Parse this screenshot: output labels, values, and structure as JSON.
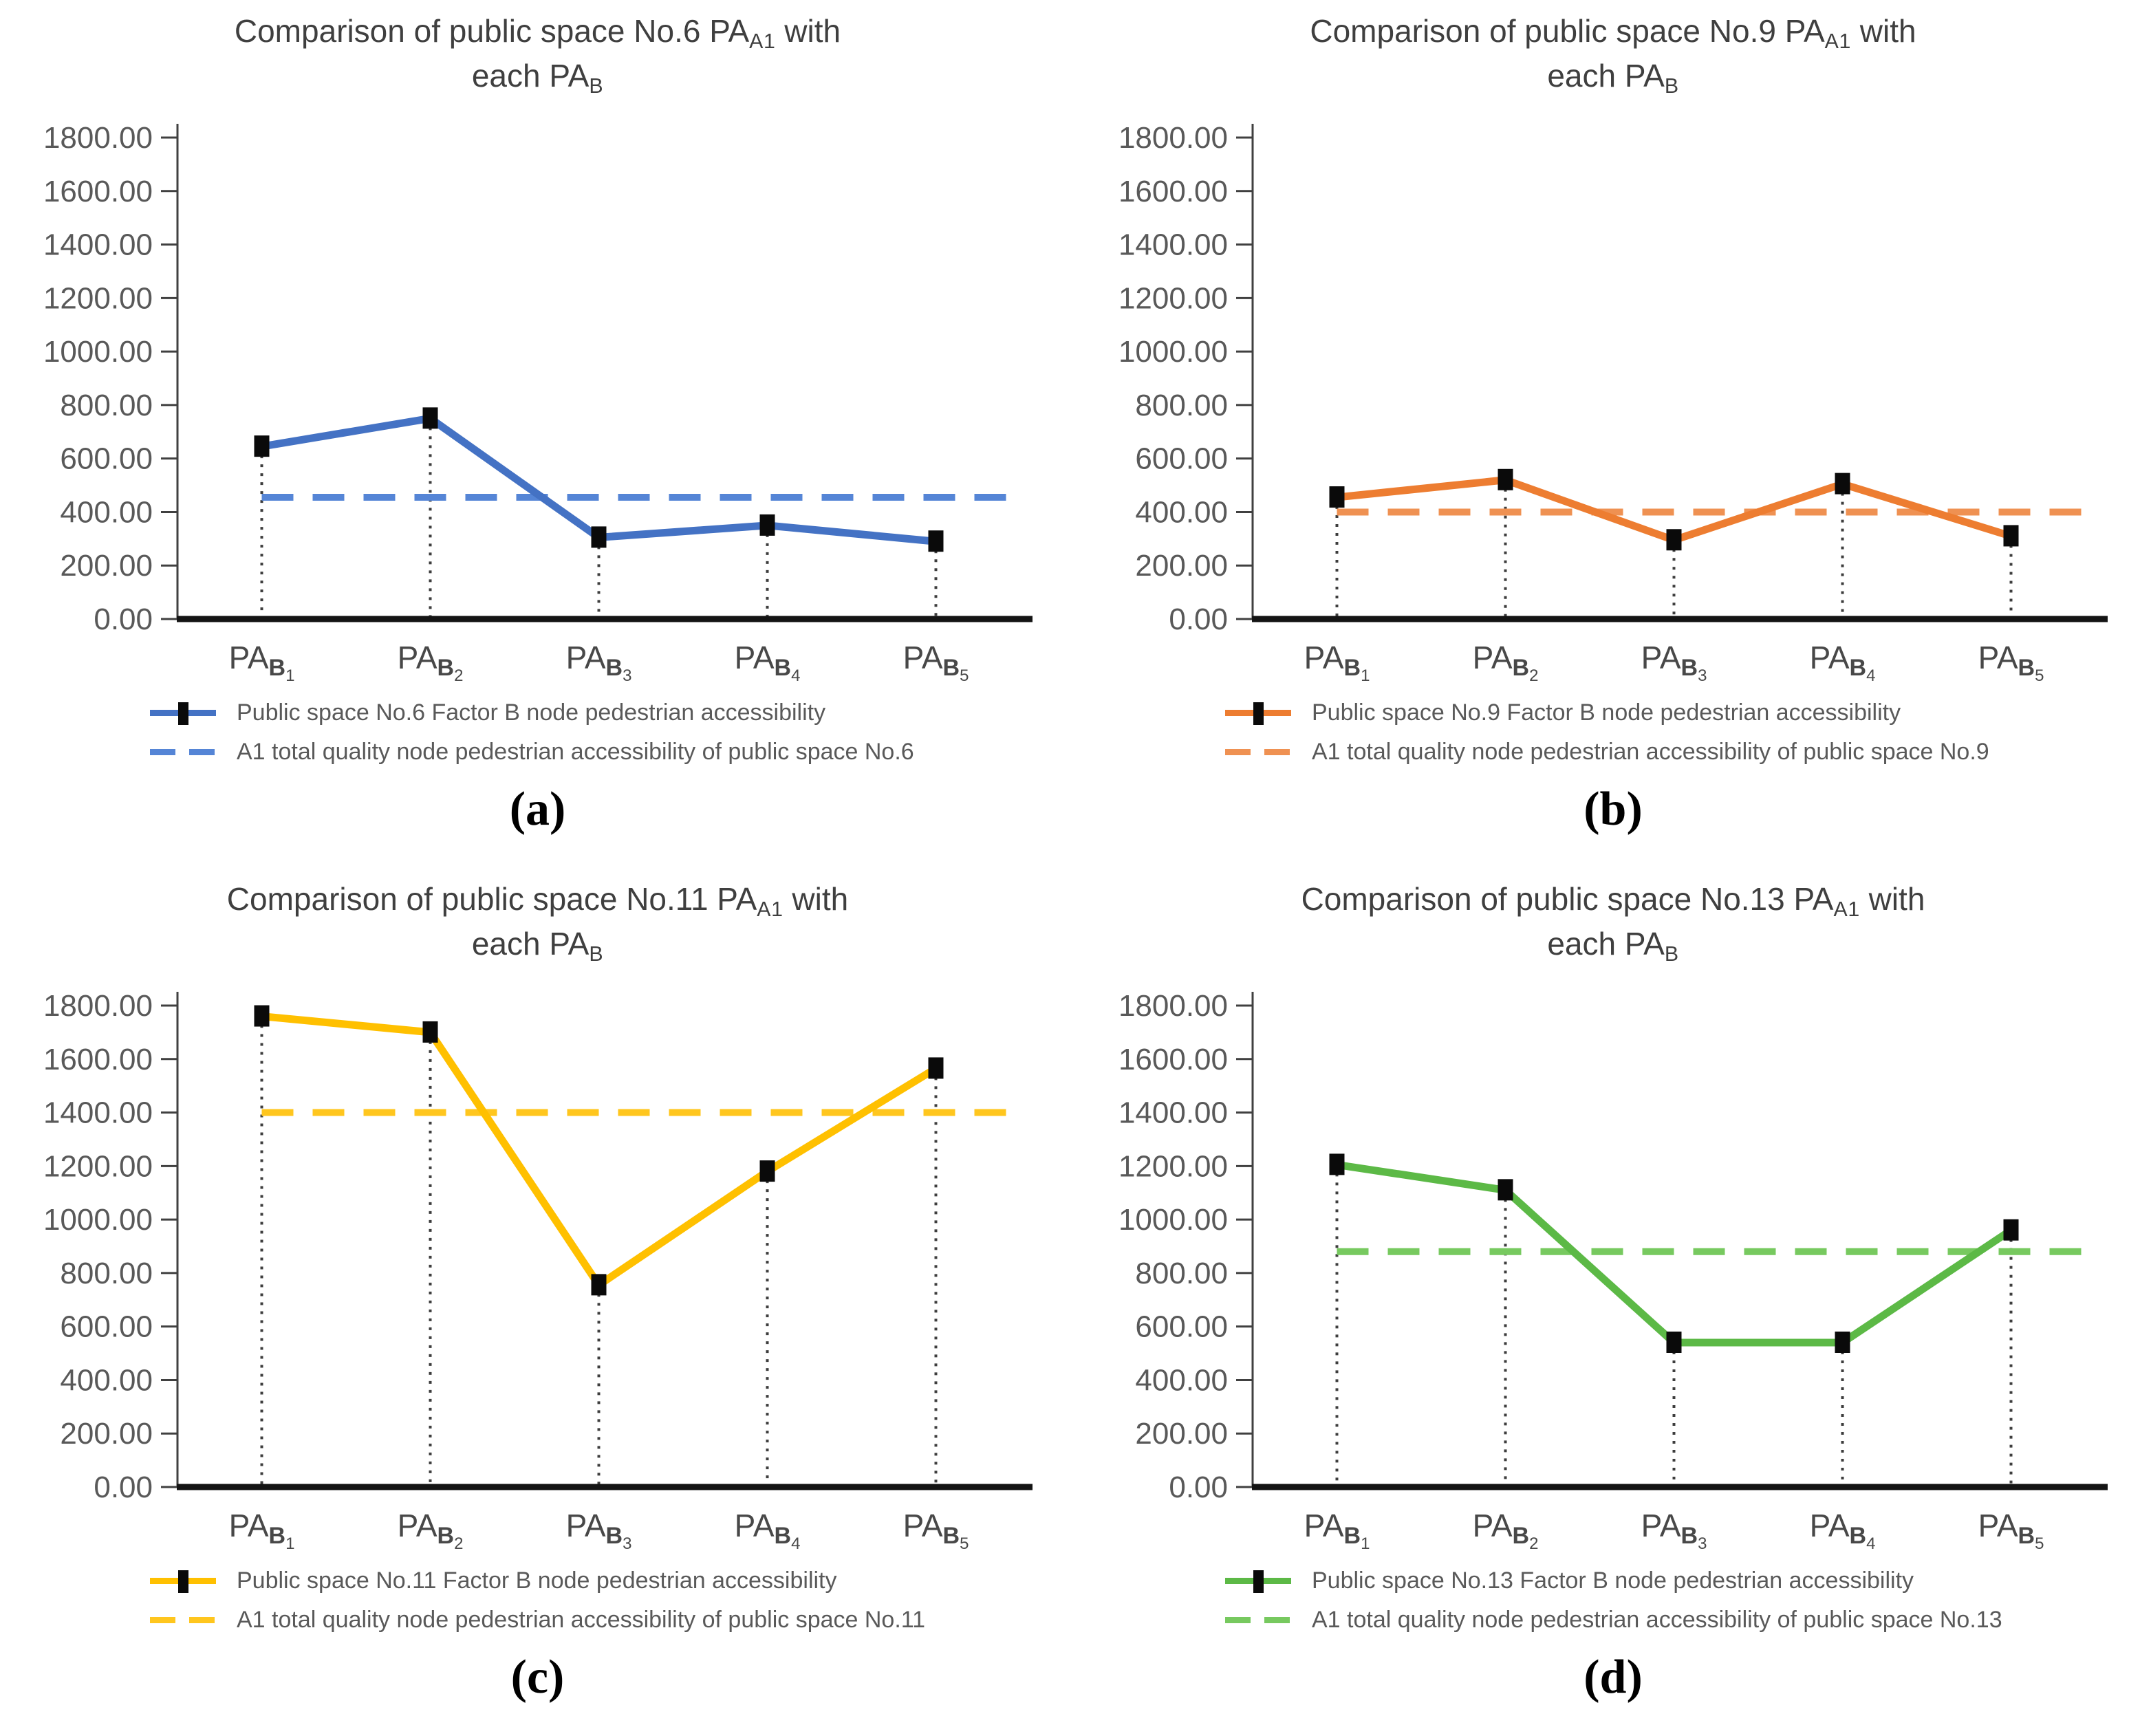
{
  "axis": {
    "y_ticks": [
      "1800.00",
      "1600.00",
      "1400.00",
      "1200.00",
      "1000.00",
      "800.00",
      "600.00",
      "400.00",
      "200.00",
      "0.00"
    ],
    "y_min": 0,
    "y_max": 1800,
    "y_step": 200,
    "x_prefix": "PA",
    "x_sub": "B",
    "x_nums": [
      "1",
      "2",
      "3",
      "4",
      "5"
    ]
  },
  "marker": {
    "shape": "black-square",
    "color": "#0a0a0a"
  },
  "chart_data": [
    {
      "id": "a",
      "type": "line",
      "caption": "(a)",
      "title": {
        "line1_main": "Comparison of public space No.6 PA",
        "line1_sub": "A1",
        "line1_tail": " with",
        "line2_main": "each PA",
        "line2_sub": "B"
      },
      "categories": [
        "PA_B1",
        "PA_B2",
        "PA_B3",
        "PA_B4",
        "PA_B5"
      ],
      "ylim": [
        0,
        1800
      ],
      "grid": false,
      "legend_position": "bottom-left",
      "series": [
        {
          "name": "Public space No.6 Factor B node pedestrian accessibility",
          "style": "solid-line-black-square-markers",
          "color": "#4472C4",
          "values": [
            645,
            750,
            305,
            350,
            290
          ]
        },
        {
          "name": "A1 total quality node pedestrian accessibility of public space No.6",
          "style": "dashed-horizontal-reference-line",
          "color": "#5585D6",
          "values": [
            455,
            455,
            455,
            455,
            455
          ]
        }
      ]
    },
    {
      "id": "b",
      "type": "line",
      "caption": "(b)",
      "title": {
        "line1_main": "Comparison of public space No.9 PA",
        "line1_sub": "A1",
        "line1_tail": " with",
        "line2_main": "each PA",
        "line2_sub": "B"
      },
      "categories": [
        "PA_B1",
        "PA_B2",
        "PA_B3",
        "PA_B4",
        "PA_B5"
      ],
      "ylim": [
        0,
        1800
      ],
      "grid": false,
      "legend_position": "bottom-left",
      "series": [
        {
          "name": "Public space No.9 Factor B node pedestrian accessibility",
          "style": "solid-line-black-square-markers",
          "color": "#ED7D31",
          "values": [
            455,
            520,
            295,
            505,
            310
          ]
        },
        {
          "name": "A1 total quality node pedestrian accessibility of public space No.9",
          "style": "dashed-horizontal-reference-line",
          "color": "#EF9152",
          "values": [
            400,
            400,
            400,
            400,
            400
          ]
        }
      ]
    },
    {
      "id": "c",
      "type": "line",
      "caption": "(c)",
      "title": {
        "line1_main": "Comparison of public space No.11 PA",
        "line1_sub": "A1",
        "line1_tail": " with",
        "line2_main": "each PA",
        "line2_sub": "B"
      },
      "categories": [
        "PA_B1",
        "PA_B2",
        "PA_B3",
        "PA_B4",
        "PA_B5"
      ],
      "ylim": [
        0,
        1800
      ],
      "grid": false,
      "legend_position": "bottom-left",
      "series": [
        {
          "name": "Public space No.11 Factor B node pedestrian accessibility",
          "style": "solid-line-black-square-markers",
          "color": "#FFC000",
          "values": [
            1760,
            1700,
            755,
            1180,
            1565
          ]
        },
        {
          "name": "A1 total quality node pedestrian accessibility of public space No.11",
          "style": "dashed-horizontal-reference-line",
          "color": "#FFC61E",
          "values": [
            1400,
            1400,
            1400,
            1400,
            1400
          ]
        }
      ]
    },
    {
      "id": "d",
      "type": "line",
      "caption": "(d)",
      "title": {
        "line1_main": "Comparison of public space No.13 PA",
        "line1_sub": "A1",
        "line1_tail": " with",
        "line2_main": "each PA",
        "line2_sub": "B"
      },
      "categories": [
        "PA_B1",
        "PA_B2",
        "PA_B3",
        "PA_B4",
        "PA_B5"
      ],
      "ylim": [
        0,
        1800
      ],
      "grid": false,
      "legend_position": "bottom-left",
      "series": [
        {
          "name": "Public space No.13 Factor B node pedestrian accessibility",
          "style": "solid-line-black-square-markers",
          "color": "#5CB946",
          "values": [
            1205,
            1110,
            540,
            540,
            960
          ]
        },
        {
          "name": "A1 total quality node pedestrian accessibility of public space No.13",
          "style": "dashed-horizontal-reference-line",
          "color": "#77C95F",
          "values": [
            880,
            880,
            880,
            880,
            880
          ]
        }
      ]
    }
  ]
}
